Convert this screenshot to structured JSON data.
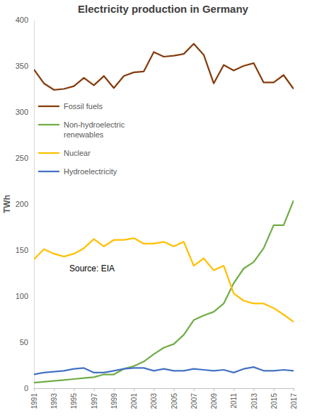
{
  "chart_data": {
    "type": "line",
    "title": "Electricity production in Germany",
    "y_label": "TWh",
    "annotation": "Source: EIA",
    "x": [
      1991,
      1992,
      1993,
      1994,
      1995,
      1996,
      1997,
      1998,
      1999,
      2000,
      2001,
      2002,
      2003,
      2004,
      2005,
      2006,
      2007,
      2008,
      2009,
      2010,
      2011,
      2012,
      2013,
      2014,
      2015,
      2016,
      2017
    ],
    "xlim": [
      1991,
      2017
    ],
    "xticks": [
      1991,
      1993,
      1995,
      1997,
      1999,
      2001,
      2003,
      2005,
      2007,
      2009,
      2011,
      2013,
      2015,
      2017
    ],
    "ylim": [
      0,
      400
    ],
    "yticks": [
      0,
      50,
      100,
      150,
      200,
      250,
      300,
      350,
      400
    ],
    "grid": false,
    "legend": "upper left",
    "series": [
      {
        "name": "Fossil fuels",
        "color": "#843c0c",
        "values": [
          346,
          331,
          324,
          325,
          328,
          337,
          329,
          339,
          326,
          339,
          343,
          344,
          365,
          360,
          361,
          363,
          374,
          362,
          331,
          351,
          345,
          350,
          353,
          332,
          332,
          340,
          325
        ]
      },
      {
        "name": "Non-hydroelectric renewables",
        "color": "#70ad47",
        "values": [
          6,
          7,
          8,
          9,
          10,
          11,
          12,
          15,
          15,
          21,
          24,
          29,
          37,
          44,
          48,
          58,
          74,
          79,
          83,
          92,
          114,
          130,
          137,
          152,
          177,
          177,
          204
        ]
      },
      {
        "name": "Nuclear",
        "color": "#ffc000",
        "values": [
          140,
          151,
          146,
          143,
          146,
          152,
          162,
          154,
          161,
          161,
          163,
          157,
          157,
          159,
          154,
          159,
          133,
          141,
          128,
          133,
          103,
          95,
          92,
          92,
          87,
          80,
          72
        ]
      },
      {
        "name": "Hydroelectricity",
        "color": "#4472c4",
        "values": [
          15,
          17,
          18,
          19,
          21,
          22,
          17,
          17,
          19,
          21,
          22,
          22,
          19,
          21,
          19,
          19,
          21,
          20,
          19,
          20,
          17,
          21,
          23,
          19,
          19,
          20,
          19
        ]
      }
    ]
  }
}
